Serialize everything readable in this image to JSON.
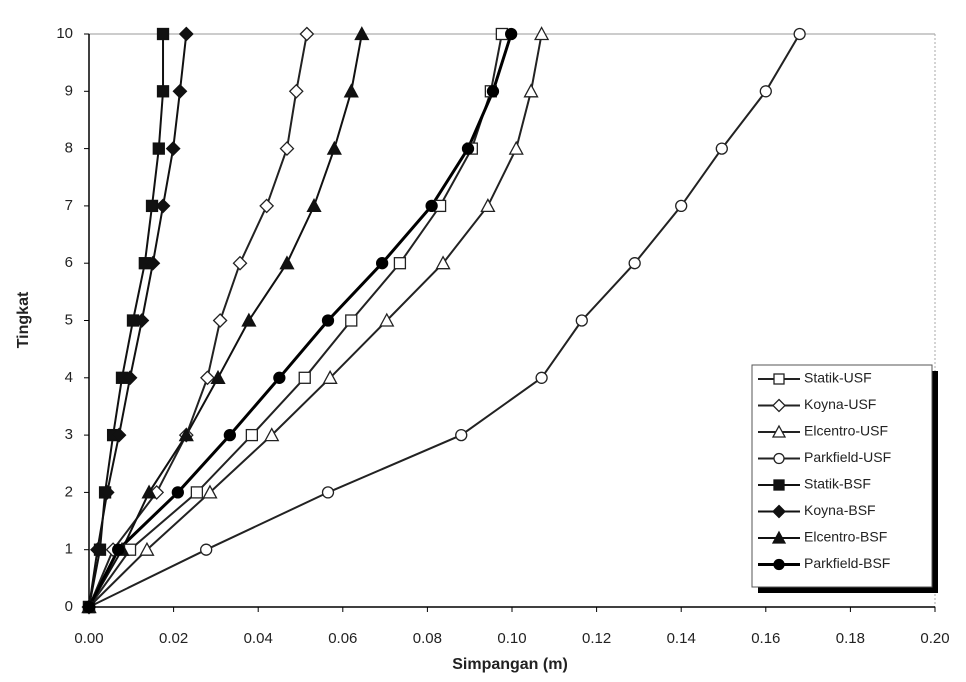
{
  "chart_data": {
    "type": "line",
    "x_label": "Simpangan (m)",
    "y_label": "Tingkat",
    "xlim": [
      0,
      0.2
    ],
    "ylim": [
      0,
      10
    ],
    "xticks": [
      {
        "value": 0,
        "label": "0.00"
      },
      0.02,
      0.04,
      0.06,
      0.08,
      {
        "value": 0.1,
        "label": "0.10"
      },
      0.12,
      0.14,
      0.16,
      0.18,
      {
        "value": 0.2,
        "label": "0.20"
      }
    ],
    "yticks": [
      0,
      1,
      2,
      3,
      4,
      5,
      6,
      7,
      8,
      9,
      10
    ],
    "legend": "lower right",
    "series": [
      {
        "name": "Statik-USF",
        "color": "#222222",
        "marker": "square",
        "filled": false,
        "x": [
          0,
          0.0097,
          0.0255,
          0.0385,
          0.051,
          0.062,
          0.0735,
          0.083,
          0.0905,
          0.095,
          0.0976
        ],
        "values": [
          0,
          1,
          2,
          3,
          4,
          5,
          6,
          7,
          8,
          9,
          10
        ]
      },
      {
        "name": "Koyna-USF",
        "color": "#222222",
        "marker": "diamond",
        "filled": false,
        "x": [
          0,
          0.0057,
          0.016,
          0.023,
          0.028,
          0.031,
          0.0357,
          0.042,
          0.0468,
          0.049,
          0.0515
        ],
        "values": [
          0,
          1,
          2,
          3,
          4,
          5,
          6,
          7,
          8,
          9,
          10
        ]
      },
      {
        "name": "Elcentro-USF",
        "color": "#222222",
        "marker": "triangle",
        "filled": false,
        "x": [
          0,
          0.0137,
          0.0286,
          0.0432,
          0.057,
          0.0704,
          0.0837,
          0.0943,
          0.101,
          0.1045,
          0.107
        ],
        "values": [
          0,
          1,
          2,
          3,
          4,
          5,
          6,
          7,
          8,
          9,
          10
        ]
      },
      {
        "name": "Parkfield-USF",
        "color": "#222222",
        "marker": "circle",
        "filled": false,
        "x": [
          0,
          0.0277,
          0.0565,
          0.088,
          0.107,
          0.1165,
          0.129,
          0.14,
          0.1496,
          0.16,
          0.168
        ],
        "values": [
          0,
          1,
          2,
          3,
          4,
          5,
          6,
          7,
          8,
          9,
          10
        ]
      },
      {
        "name": "Statik-BSF",
        "color": "#111111",
        "marker": "square",
        "filled": true,
        "x": [
          0,
          0.0026,
          0.0038,
          0.0057,
          0.0078,
          0.0104,
          0.0132,
          0.0149,
          0.0165,
          0.0175,
          0.0175
        ],
        "values": [
          0,
          1,
          2,
          3,
          4,
          5,
          6,
          7,
          8,
          9,
          10
        ]
      },
      {
        "name": "Koyna-BSF",
        "color": "#111111",
        "marker": "diamond",
        "filled": true,
        "x": [
          0,
          0.002,
          0.0043,
          0.0071,
          0.0097,
          0.0125,
          0.0151,
          0.0175,
          0.0199,
          0.0215,
          0.023
        ],
        "values": [
          0,
          1,
          2,
          3,
          4,
          5,
          6,
          7,
          8,
          9,
          10
        ]
      },
      {
        "name": "Elcentro-BSF",
        "color": "#111111",
        "marker": "triangle",
        "filled": true,
        "x": [
          0,
          0.0078,
          0.0142,
          0.023,
          0.0305,
          0.0378,
          0.0468,
          0.0532,
          0.058,
          0.062,
          0.0645
        ],
        "values": [
          0,
          1,
          2,
          3,
          4,
          5,
          6,
          7,
          8,
          9,
          10
        ]
      },
      {
        "name": "Parkfield-BSF",
        "color": "#000000",
        "marker": "circle",
        "filled": true,
        "x": [
          0,
          0.0069,
          0.021,
          0.0333,
          0.045,
          0.0565,
          0.0693,
          0.081,
          0.0896,
          0.0955,
          0.0998
        ],
        "values": [
          0,
          1,
          2,
          3,
          4,
          5,
          6,
          7,
          8,
          9,
          10
        ]
      }
    ]
  }
}
